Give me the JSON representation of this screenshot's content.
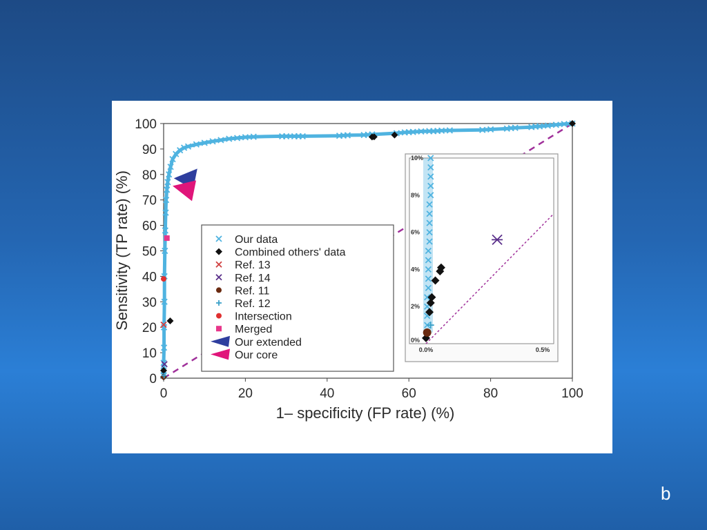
{
  "slide": {
    "letter": "b"
  },
  "chart_data": {
    "type": "scatter",
    "title": "",
    "xlabel": "1– specificity (FP rate) (%)",
    "ylabel": "Sensitivity (TP rate) (%)",
    "xlim": [
      0,
      100
    ],
    "ylim": [
      0,
      100
    ],
    "x_ticks": [
      "0",
      "20",
      "40",
      "60",
      "80",
      "100"
    ],
    "y_ticks": [
      "0",
      "10",
      "20",
      "30",
      "40",
      "50",
      "60",
      "70",
      "80",
      "90",
      "100"
    ],
    "legend": {
      "placement": "center-left"
    },
    "colors": {
      "our_data": "#4fb3e0",
      "combined": "#111111",
      "ref13": "#d04040",
      "ref14": "#5a2f8a",
      "ref11": "#6a2a10",
      "ref12": "#3aa0c8",
      "intersection": "#e03030",
      "merged": "#e8368a",
      "extended": "#2e3e9e",
      "core": "#e0157a",
      "diagonal": "#a0309a"
    },
    "series": [
      {
        "name": "Our data",
        "marker": "x",
        "points": [
          [
            0,
            1
          ],
          [
            0,
            3
          ],
          [
            0,
            6
          ],
          [
            0.1,
            12
          ],
          [
            0.1,
            20
          ],
          [
            0.2,
            30
          ],
          [
            0.2,
            40
          ],
          [
            0.3,
            50
          ],
          [
            0.4,
            58
          ],
          [
            0.5,
            65
          ],
          [
            0.6,
            70
          ],
          [
            0.8,
            74
          ],
          [
            1,
            77
          ],
          [
            1.3,
            80
          ],
          [
            1.7,
            83
          ],
          [
            2.2,
            86
          ],
          [
            3,
            88
          ],
          [
            4,
            89.5
          ],
          [
            5,
            90.5
          ],
          [
            6,
            91
          ],
          [
            8,
            91.8
          ],
          [
            10,
            92.4
          ],
          [
            12,
            93
          ],
          [
            14,
            93.5
          ],
          [
            16,
            94
          ],
          [
            18,
            94.3
          ],
          [
            20,
            94.6
          ],
          [
            22,
            94.8
          ],
          [
            29,
            95
          ],
          [
            30,
            95
          ],
          [
            32,
            95
          ],
          [
            33,
            95
          ],
          [
            34,
            95
          ],
          [
            43,
            95.2
          ],
          [
            44,
            95.3
          ],
          [
            45,
            95.4
          ],
          [
            49,
            95.5
          ],
          [
            50,
            95.6
          ],
          [
            51,
            95.7
          ],
          [
            57,
            96.2
          ],
          [
            59,
            96.5
          ],
          [
            60,
            96.6
          ],
          [
            61,
            96.7
          ],
          [
            63,
            96.9
          ],
          [
            65,
            97
          ],
          [
            66,
            97
          ],
          [
            67,
            97.1
          ],
          [
            68,
            97.2
          ],
          [
            70,
            97.3
          ],
          [
            78,
            97.5
          ],
          [
            80,
            97.7
          ],
          [
            84,
            98
          ],
          [
            85,
            98.2
          ],
          [
            86,
            98.3
          ],
          [
            90,
            98.6
          ],
          [
            91,
            98.8
          ],
          [
            92,
            98.9
          ],
          [
            94,
            99.2
          ],
          [
            96,
            99.5
          ],
          [
            98,
            99.8
          ],
          [
            100,
            100
          ]
        ]
      },
      {
        "name": "Combined others' data",
        "marker": "diamond",
        "points": [
          [
            0,
            0.5
          ],
          [
            0,
            3
          ],
          [
            1.6,
            22.5
          ],
          [
            51,
            94.7
          ],
          [
            51.5,
            94.8
          ],
          [
            56.5,
            95.5
          ],
          [
            100,
            100
          ]
        ]
      },
      {
        "name": "Ref. 13",
        "marker": "x",
        "points": [
          [
            0,
            21
          ]
        ]
      },
      {
        "name": "Ref. 14",
        "marker": "x",
        "points": [
          [
            0.2,
            5.5
          ]
        ]
      },
      {
        "name": "Ref. 11",
        "marker": "circle",
        "points": [
          [
            0,
            0.5
          ]
        ]
      },
      {
        "name": "Ref. 12",
        "marker": "plus",
        "points": [
          [
            0.1,
            1
          ]
        ]
      },
      {
        "name": "Intersection",
        "marker": "dot",
        "points": [
          [
            0,
            39
          ]
        ]
      },
      {
        "name": "Merged",
        "marker": "square",
        "points": [
          [
            0.8,
            55
          ]
        ]
      },
      {
        "name": "Our extended",
        "marker": "wedge-left",
        "points": [
          [
            2.5,
            78.5
          ]
        ]
      },
      {
        "name": "Our core",
        "marker": "wedge-left",
        "points": [
          [
            2.2,
            75.5
          ]
        ]
      }
    ],
    "diagonal": {
      "from": [
        0,
        0
      ],
      "to": [
        100,
        100
      ],
      "style": "dashed"
    },
    "inset": {
      "xlim": [
        0,
        0.5
      ],
      "ylim": [
        0,
        10
      ],
      "x_ticks": [
        "0.0%",
        "0.5%"
      ],
      "y_ticks": [
        "0%",
        "2%",
        "4%",
        "6%",
        "8%",
        "10%"
      ],
      "our_data": [
        [
          0.005,
          0.6
        ],
        [
          0.005,
          1.0
        ],
        [
          0.005,
          1.5
        ],
        [
          0.005,
          2.0
        ],
        [
          0.005,
          2.5
        ],
        [
          0.01,
          3.0
        ],
        [
          0.01,
          3.5
        ],
        [
          0.01,
          4.0
        ],
        [
          0.01,
          4.5
        ],
        [
          0.01,
          5.0
        ],
        [
          0.015,
          5.5
        ],
        [
          0.015,
          6.0
        ],
        [
          0.015,
          6.5
        ],
        [
          0.015,
          7.0
        ],
        [
          0.015,
          7.5
        ],
        [
          0.02,
          8.0
        ],
        [
          0.02,
          8.5
        ],
        [
          0.02,
          9.0
        ],
        [
          0.02,
          9.5
        ],
        [
          0.02,
          10.0
        ]
      ],
      "combined": [
        [
          0.0,
          0.3
        ],
        [
          0.015,
          1.7
        ],
        [
          0.02,
          2.2
        ],
        [
          0.025,
          2.5
        ],
        [
          0.04,
          3.4
        ],
        [
          0.06,
          3.9
        ],
        [
          0.065,
          4.1
        ]
      ],
      "ref14": [
        [
          0.305,
          5.6
        ]
      ],
      "ref11": [
        [
          0.005,
          0.6
        ]
      ],
      "ref12": [
        [
          0.02,
          1.0
        ]
      ]
    }
  }
}
